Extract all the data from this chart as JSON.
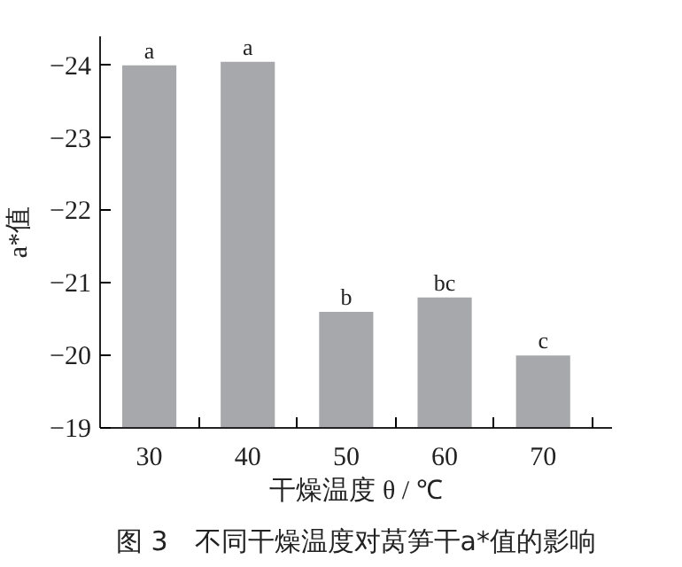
{
  "chart_data": {
    "type": "bar",
    "categories": [
      "30",
      "40",
      "50",
      "60",
      "70"
    ],
    "values": [
      -24.0,
      -24.05,
      -20.6,
      -20.8,
      -20.0
    ],
    "color": "#a7a8ab",
    "value_labels": [
      "a",
      "a",
      "b",
      "bc",
      "c"
    ],
    "xlabel": "干燥温度 θ / ℃",
    "ylabel": "a*值",
    "ylim": [
      -19,
      -24.4
    ],
    "yticks": [
      {
        "value": -24,
        "label": "−24"
      },
      {
        "value": -23,
        "label": "−23"
      },
      {
        "value": -22,
        "label": "−22"
      },
      {
        "value": -21,
        "label": "−21"
      },
      {
        "value": -20,
        "label": "−20"
      },
      {
        "value": -19,
        "label": "−19"
      }
    ],
    "grid": false,
    "annotations": [
      "图 3　不同干燥温度对莴笋干a*值的影响"
    ]
  }
}
